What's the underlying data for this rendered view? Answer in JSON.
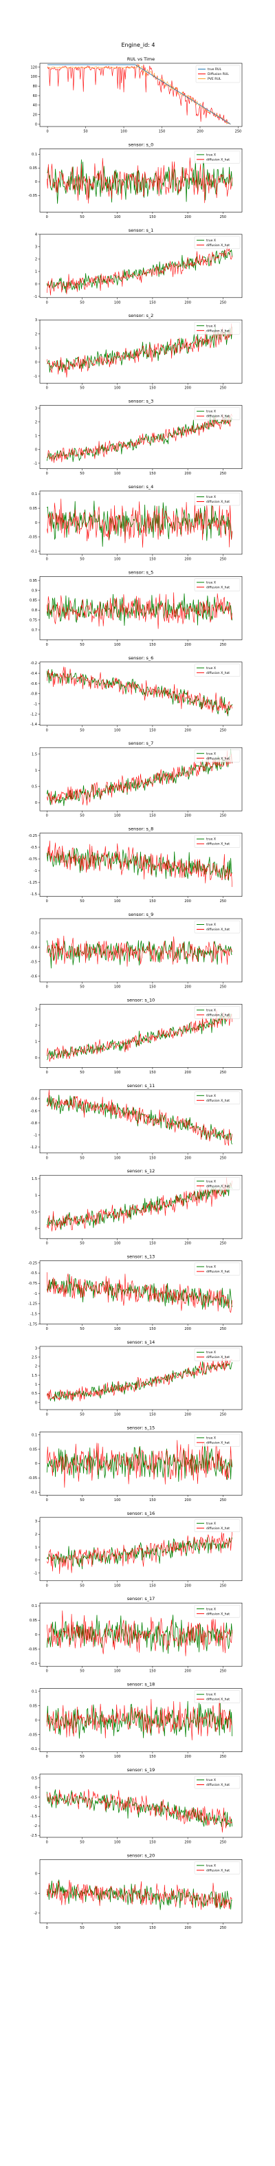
{
  "figure": {
    "suptitle": "Engine_id: 4"
  },
  "chart_data": [
    {
      "type": "line",
      "title": "RUL vs Time",
      "xlabel": "",
      "ylabel": "",
      "xlim": [
        -10,
        255
      ],
      "ylim": [
        -5,
        128
      ],
      "xticks": [
        0,
        50,
        100,
        150,
        200,
        250
      ],
      "yticks": [
        0,
        20,
        40,
        60,
        80,
        100,
        120
      ],
      "legend": "top-right",
      "generator": {
        "kind": "rul",
        "n": 241,
        "cap": 125
      },
      "series": [
        {
          "name": "true RUL",
          "color": "#1f77b4",
          "role": "true"
        },
        {
          "name": "Diffusion RUL",
          "color": "#ff0000",
          "role": "pred",
          "noise": 0.12
        },
        {
          "name": "PVE RUL",
          "color": "#ff9f2a",
          "role": "pve",
          "noise": 0.05
        }
      ]
    },
    {
      "type": "line",
      "title": "sensor: s_0",
      "xlim": [
        -10,
        277
      ],
      "ylim": [
        -0.11,
        0.12
      ],
      "yticks": [
        -0.05,
        0.0,
        0.05,
        0.1
      ],
      "xticks": [
        0,
        50,
        100,
        150,
        200,
        250
      ],
      "legend": "top-right",
      "generator": {
        "kind": "flat",
        "n": 264,
        "base": 0.0,
        "end": 0.0,
        "amp": 0.11
      },
      "series": [
        {
          "name": "true X",
          "color": "#008000",
          "role": "true"
        },
        {
          "name": "diffusion X_hat",
          "color": "#ff0000",
          "role": "pred"
        }
      ]
    },
    {
      "type": "line",
      "title": "sensor: s_1",
      "xlim": [
        -10,
        277
      ],
      "ylim": [
        -1.1,
        4.0
      ],
      "yticks": [
        -1,
        0,
        1,
        2,
        3,
        4
      ],
      "xticks": [
        0,
        50,
        100,
        150,
        200,
        250
      ],
      "legend": "top-right",
      "generator": {
        "kind": "trend",
        "n": 264,
        "base": -0.2,
        "end": 2.5,
        "amp": 1.1
      },
      "series": [
        {
          "name": "true X",
          "color": "#008000",
          "role": "true"
        },
        {
          "name": "diffusion X_hat",
          "color": "#ff0000",
          "role": "pred"
        }
      ]
    },
    {
      "type": "line",
      "title": "sensor: s_2",
      "xlim": [
        -10,
        277
      ],
      "ylim": [
        -1.5,
        3.0
      ],
      "yticks": [
        -1,
        0,
        1,
        2,
        3
      ],
      "xticks": [
        0,
        50,
        100,
        150,
        200,
        250
      ],
      "legend": "top-right",
      "generator": {
        "kind": "trend",
        "n": 264,
        "base": -0.3,
        "end": 2.0,
        "amp": 1.1
      },
      "series": [
        {
          "name": "true X",
          "color": "#008000",
          "role": "true"
        },
        {
          "name": "diffusion X_hat",
          "color": "#ff0000",
          "role": "pred"
        }
      ]
    },
    {
      "type": "line",
      "title": "sensor: s_3",
      "xlim": [
        -10,
        277
      ],
      "ylim": [
        -1.4,
        3.2
      ],
      "yticks": [
        -1,
        0,
        1,
        2,
        3
      ],
      "xticks": [
        0,
        50,
        100,
        150,
        200,
        250
      ],
      "legend": "top-right",
      "generator": {
        "kind": "trend",
        "n": 264,
        "base": -0.5,
        "end": 2.3,
        "amp": 0.9
      },
      "series": [
        {
          "name": "true X",
          "color": "#008000",
          "role": "true"
        },
        {
          "name": "diffusion X_hat",
          "color": "#ff0000",
          "role": "pred"
        }
      ]
    },
    {
      "type": "line",
      "title": "sensor: s_4",
      "xlim": [
        -10,
        277
      ],
      "ylim": [
        -0.11,
        0.11
      ],
      "yticks": [
        -0.1,
        -0.05,
        0.0,
        0.05,
        0.1
      ],
      "xticks": [
        0,
        50,
        100,
        150,
        200,
        250
      ],
      "legend": "top-right",
      "generator": {
        "kind": "flat",
        "n": 264,
        "base": 0.0,
        "end": 0.0,
        "amp": 0.11
      },
      "series": [
        {
          "name": "true X",
          "color": "#008000",
          "role": "true"
        },
        {
          "name": "diffusion X_hat",
          "color": "#ff0000",
          "role": "pred"
        }
      ]
    },
    {
      "type": "line",
      "title": "sensor: s_5",
      "xlim": [
        -10,
        277
      ],
      "ylim": [
        0.65,
        0.97
      ],
      "yticks": [
        0.7,
        0.75,
        0.8,
        0.85,
        0.9,
        0.95
      ],
      "xticks": [
        0,
        50,
        100,
        150,
        200,
        250
      ],
      "legend": "top-right",
      "generator": {
        "kind": "flat",
        "n": 264,
        "base": 0.8,
        "end": 0.8,
        "amp": 0.12
      },
      "series": [
        {
          "name": "true X",
          "color": "#008000",
          "role": "true"
        },
        {
          "name": "diffusion X_hat",
          "color": "#ff0000",
          "role": "pred"
        }
      ]
    },
    {
      "type": "line",
      "title": "sensor: s_6",
      "xlim": [
        -10,
        277
      ],
      "ylim": [
        -1.42,
        -0.18
      ],
      "yticks": [
        -1.4,
        -1.2,
        -1.0,
        -0.8,
        -0.6,
        -0.4,
        -0.2
      ],
      "xticks": [
        0,
        50,
        100,
        150,
        200,
        250
      ],
      "legend": "top-right",
      "generator": {
        "kind": "trend",
        "n": 264,
        "base": -0.45,
        "end": -1.1,
        "amp": 0.3
      },
      "series": [
        {
          "name": "true X",
          "color": "#008000",
          "role": "true"
        },
        {
          "name": "diffusion X_hat",
          "color": "#ff0000",
          "role": "pred"
        }
      ]
    },
    {
      "type": "line",
      "title": "sensor: s_7",
      "xlim": [
        -10,
        277
      ],
      "ylim": [
        -0.25,
        1.7
      ],
      "yticks": [
        0.0,
        0.5,
        1.0,
        1.5
      ],
      "xticks": [
        0,
        50,
        100,
        150,
        200,
        250
      ],
      "legend": "top-right",
      "generator": {
        "kind": "trend",
        "n": 264,
        "base": 0.15,
        "end": 1.35,
        "amp": 0.45
      },
      "series": [
        {
          "name": "true X",
          "color": "#008000",
          "role": "true"
        },
        {
          "name": "diffusion X_hat",
          "color": "#ff0000",
          "role": "pred"
        }
      ]
    },
    {
      "type": "line",
      "title": "sensor: s_8",
      "xlim": [
        -10,
        277
      ],
      "ylim": [
        -1.55,
        -0.2
      ],
      "yticks": [
        -1.5,
        -1.25,
        -1.0,
        -0.75,
        -0.5,
        -0.25
      ],
      "xticks": [
        0,
        50,
        100,
        150,
        200,
        250
      ],
      "legend": "top-right",
      "generator": {
        "kind": "trend",
        "n": 264,
        "base": -0.7,
        "end": -1.05,
        "amp": 0.45
      },
      "series": [
        {
          "name": "true X",
          "color": "#008000",
          "role": "true"
        },
        {
          "name": "diffusion X_hat",
          "color": "#ff0000",
          "role": "pred"
        }
      ]
    },
    {
      "type": "line",
      "title": "sensor: s_9",
      "xlim": [
        -10,
        277
      ],
      "ylim": [
        -0.64,
        -0.2
      ],
      "yticks": [
        -0.6,
        -0.5,
        -0.4,
        -0.3
      ],
      "xticks": [
        0,
        50,
        100,
        150,
        200,
        250
      ],
      "legend": "top-right",
      "generator": {
        "kind": "flat",
        "n": 264,
        "base": -0.43,
        "end": -0.43,
        "amp": 0.14
      },
      "series": [
        {
          "name": "true X",
          "color": "#008000",
          "role": "true"
        },
        {
          "name": "diffusion X_hat",
          "color": "#ff0000",
          "role": "pred"
        }
      ]
    },
    {
      "type": "line",
      "title": "sensor: s_10",
      "xlim": [
        -10,
        277
      ],
      "ylim": [
        -0.6,
        3.3
      ],
      "yticks": [
        0,
        1,
        2,
        3
      ],
      "xticks": [
        0,
        50,
        100,
        150,
        200,
        250
      ],
      "legend": "top-right",
      "generator": {
        "kind": "trend",
        "n": 264,
        "base": 0.2,
        "end": 2.5,
        "amp": 0.8
      },
      "series": [
        {
          "name": "true X",
          "color": "#008000",
          "role": "true"
        },
        {
          "name": "diffusion X_hat",
          "color": "#ff0000",
          "role": "pred"
        }
      ]
    },
    {
      "type": "line",
      "title": "sensor: s_11",
      "xlim": [
        -10,
        277
      ],
      "ylim": [
        -1.3,
        -0.25
      ],
      "yticks": [
        -1.2,
        -1.0,
        -0.8,
        -0.6,
        -0.4
      ],
      "xticks": [
        0,
        50,
        100,
        150,
        200,
        250
      ],
      "legend": "top-right",
      "generator": {
        "kind": "trend",
        "n": 264,
        "base": -0.45,
        "end": -1.05,
        "amp": 0.25
      },
      "series": [
        {
          "name": "true X",
          "color": "#008000",
          "role": "true"
        },
        {
          "name": "diffusion X_hat",
          "color": "#ff0000",
          "role": "pred"
        }
      ]
    },
    {
      "type": "line",
      "title": "sensor: s_12",
      "xlim": [
        -10,
        277
      ],
      "ylim": [
        -0.3,
        1.6
      ],
      "yticks": [
        0.0,
        0.5,
        1.0,
        1.5
      ],
      "xticks": [
        0,
        50,
        100,
        150,
        200,
        250
      ],
      "legend": "top-right",
      "generator": {
        "kind": "trend",
        "n": 264,
        "base": 0.15,
        "end": 1.25,
        "amp": 0.45
      },
      "series": [
        {
          "name": "true X",
          "color": "#008000",
          "role": "true"
        },
        {
          "name": "diffusion X_hat",
          "color": "#ff0000",
          "role": "pred"
        }
      ]
    },
    {
      "type": "line",
      "title": "sensor: s_13",
      "xlim": [
        -10,
        277
      ],
      "ylim": [
        -1.75,
        -0.2
      ],
      "yticks": [
        -1.75,
        -1.5,
        -1.25,
        -1.0,
        -0.75,
        -0.5,
        -0.25
      ],
      "xticks": [
        0,
        50,
        100,
        150,
        200,
        250
      ],
      "legend": "top-right",
      "generator": {
        "kind": "trend",
        "n": 264,
        "base": -0.8,
        "end": -1.2,
        "amp": 0.5
      },
      "series": [
        {
          "name": "true X",
          "color": "#008000",
          "role": "true"
        },
        {
          "name": "diffusion X_hat",
          "color": "#ff0000",
          "role": "pred"
        }
      ]
    },
    {
      "type": "line",
      "title": "sensor: s_14",
      "xlim": [
        -10,
        277
      ],
      "ylim": [
        -0.4,
        3.1
      ],
      "yticks": [
        0.0,
        0.5,
        1.0,
        1.5,
        2.0,
        2.5,
        3.0
      ],
      "xticks": [
        0,
        50,
        100,
        150,
        200,
        250
      ],
      "legend": "top-right",
      "generator": {
        "kind": "trend",
        "n": 264,
        "base": 0.3,
        "end": 2.2,
        "amp": 0.6
      },
      "series": [
        {
          "name": "true X",
          "color": "#008000",
          "role": "true"
        },
        {
          "name": "diffusion X_hat",
          "color": "#ff0000",
          "role": "pred"
        }
      ]
    },
    {
      "type": "line",
      "title": "sensor: s_15",
      "xlim": [
        -10,
        277
      ],
      "ylim": [
        -0.11,
        0.11
      ],
      "yticks": [
        -0.1,
        -0.05,
        0.0,
        0.05,
        0.1
      ],
      "xticks": [
        0,
        50,
        100,
        150,
        200,
        250
      ],
      "legend": "top-right",
      "generator": {
        "kind": "flat",
        "n": 264,
        "base": 0.0,
        "end": 0.0,
        "amp": 0.1
      },
      "series": [
        {
          "name": "true X",
          "color": "#008000",
          "role": "true"
        },
        {
          "name": "diffusion X_hat",
          "color": "#ff0000",
          "role": "pred"
        }
      ]
    },
    {
      "type": "line",
      "title": "sensor: s_16",
      "xlim": [
        -10,
        277
      ],
      "ylim": [
        -1.6,
        3.3
      ],
      "yticks": [
        -1,
        0,
        1,
        2,
        3
      ],
      "xticks": [
        0,
        50,
        100,
        150,
        200,
        250
      ],
      "legend": "top-right",
      "generator": {
        "kind": "trend",
        "n": 264,
        "base": 0.0,
        "end": 1.5,
        "amp": 1.3
      },
      "series": [
        {
          "name": "true X",
          "color": "#008000",
          "role": "true"
        },
        {
          "name": "diffusion X_hat",
          "color": "#ff0000",
          "role": "pred"
        }
      ]
    },
    {
      "type": "line",
      "title": "sensor: s_17",
      "xlim": [
        -10,
        277
      ],
      "ylim": [
        -0.11,
        0.11
      ],
      "yticks": [
        -0.1,
        -0.05,
        0.0,
        0.05,
        0.1
      ],
      "xticks": [
        0,
        50,
        100,
        150,
        200,
        250
      ],
      "legend": "top-right",
      "generator": {
        "kind": "flat",
        "n": 264,
        "base": 0.0,
        "end": 0.0,
        "amp": 0.1
      },
      "series": [
        {
          "name": "true X",
          "color": "#008000",
          "role": "true"
        },
        {
          "name": "diffusion X_hat",
          "color": "#ff0000",
          "role": "pred"
        }
      ]
    },
    {
      "type": "line",
      "title": "sensor: s_18",
      "xlim": [
        -10,
        277
      ],
      "ylim": [
        -0.11,
        0.11
      ],
      "yticks": [
        -0.1,
        -0.05,
        0.0,
        0.05,
        0.1
      ],
      "xticks": [
        0,
        50,
        100,
        150,
        200,
        250
      ],
      "legend": "top-right",
      "generator": {
        "kind": "flat",
        "n": 264,
        "base": 0.0,
        "end": 0.0,
        "amp": 0.1
      },
      "series": [
        {
          "name": "true X",
          "color": "#008000",
          "role": "true"
        },
        {
          "name": "diffusion X_hat",
          "color": "#ff0000",
          "role": "pred"
        }
      ]
    },
    {
      "type": "line",
      "title": "sensor: s_19",
      "xlim": [
        -10,
        277
      ],
      "ylim": [
        -2.6,
        0.7
      ],
      "yticks": [
        -2.5,
        -2.0,
        -1.5,
        -1.0,
        -0.5,
        0.0,
        0.5
      ],
      "xticks": [
        0,
        50,
        100,
        150,
        200,
        250
      ],
      "legend": "top-right",
      "generator": {
        "kind": "trend",
        "n": 264,
        "base": -0.5,
        "end": -1.8,
        "amp": 0.9
      },
      "series": [
        {
          "name": "true X",
          "color": "#008000",
          "role": "true"
        },
        {
          "name": "diffusion X_hat",
          "color": "#ff0000",
          "role": "pred"
        }
      ]
    },
    {
      "type": "line",
      "title": "sensor: s_20",
      "xlim": [
        -10,
        277
      ],
      "ylim": [
        -2.5,
        0.7
      ],
      "yticks": [
        -2,
        -1,
        0
      ],
      "xticks": [
        0,
        50,
        100,
        150,
        200,
        250
      ],
      "legend": "top-right",
      "generator": {
        "kind": "trend",
        "n": 264,
        "base": -0.9,
        "end": -1.4,
        "amp": 0.9
      },
      "series": [
        {
          "name": "true X",
          "color": "#008000",
          "role": "true"
        },
        {
          "name": "diffusion X_hat",
          "color": "#ff0000",
          "role": "pred"
        }
      ]
    }
  ]
}
